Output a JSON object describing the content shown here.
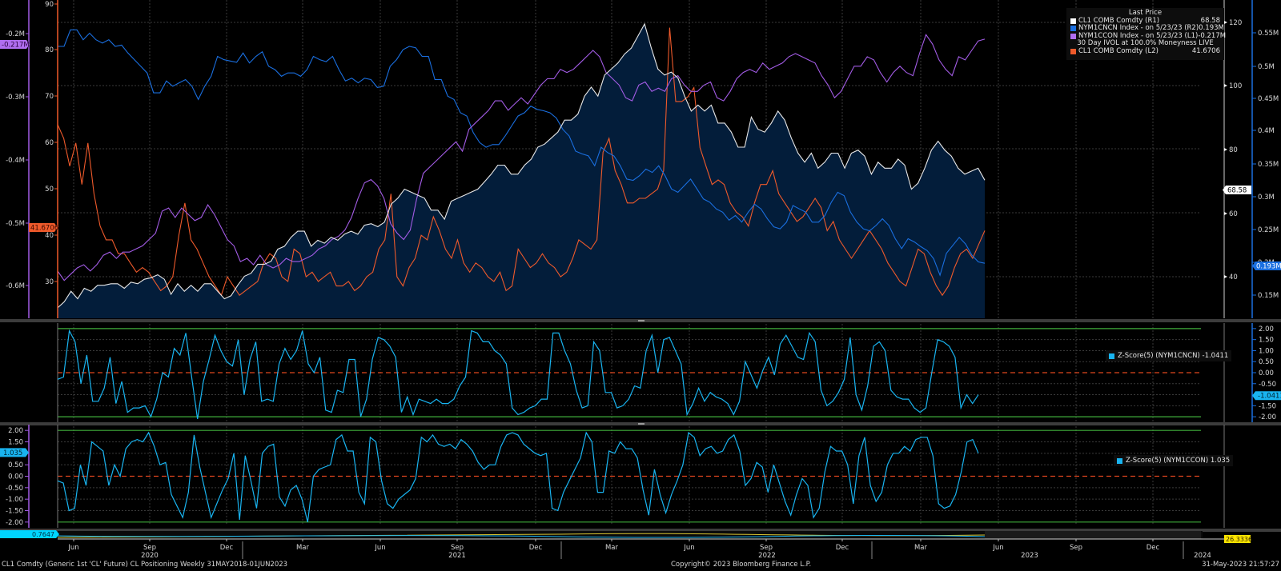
{
  "window": {
    "footer_left": "CL1 Comdty (Generic 1st 'CL' Future) CL Positioning  Weekly 31MAY2018-01JUN2023",
    "footer_center": "Copyright© 2023 Bloomberg Finance L.P.",
    "footer_right": "31-May-2023 21:57:27"
  },
  "colors": {
    "background": "#000000",
    "area_fill": "#031d3a",
    "cl1_price": "#e8e8e8",
    "nym1cncn": "#1a6fe0",
    "nym1ccon": "#a35ce6",
    "ivol": "#ef5a2b",
    "zscore": "#19b4f0",
    "zero_line": "#e0461e",
    "band_line": "#3fae3a",
    "grid": "#3a3a3a"
  },
  "legend": {
    "title": "Last Price",
    "rows": [
      {
        "name": "CL1 COMB Comdty  (R1)",
        "value": "68.58",
        "color": "#ffffff"
      },
      {
        "name": "NYM1CNCN Index -  on 5/23/23  (R2)",
        "value": "0.193M",
        "color": "#1a6fe0"
      },
      {
        "name": "NYM1CCON Index -  on 5/23/23  (L1)",
        "value": "-0.217M",
        "color": "#b06ef0"
      }
    ],
    "subtitle": "30 Day IVOL at 100.0% Moneyness LIVE",
    "rows2": [
      {
        "name": "CL1 COMB Comdty  (L2)",
        "value": "41.6706",
        "color": "#ef5a2b"
      }
    ]
  },
  "axes": {
    "l1_ticks": [
      "-0.2M",
      "-0.3M",
      "-0.4M",
      "-0.5M",
      "-0.6M"
    ],
    "l1_last": "-0.217M",
    "l2_ticks": [
      "90",
      "80",
      "70",
      "60",
      "50",
      "40",
      "30"
    ],
    "l2_last": "41.6706",
    "r1_ticks": [
      "120",
      "100",
      "80",
      "60",
      "40"
    ],
    "r1_last": "68.58",
    "r2_ticks": [
      "0.55M",
      "0.5M",
      "0.45M",
      "0.4M",
      "0.35M",
      "0.3M",
      "0.25M",
      "0.2M",
      "0.15M"
    ],
    "r2_last": "0.193M",
    "z_ticks": [
      "2.00",
      "1.50",
      "1.00",
      "0.50",
      "0.00",
      "-0.50",
      "-1.00",
      "-1.50",
      "-2.00"
    ],
    "z1_last": "-1.0411",
    "z2_last": "1.035",
    "mini_left": "0.7647",
    "mini_right": "26.3336",
    "x_months": [
      "Jun",
      "Sep",
      "Dec",
      "Mar",
      "Jun",
      "Sep",
      "Dec",
      "Mar",
      "Jun",
      "Sep",
      "Dec",
      "Mar",
      "Jun",
      "Sep",
      "Dec"
    ],
    "x_years": [
      "2020",
      "2021",
      "2022",
      "2023",
      "2024"
    ]
  },
  "zpanels": {
    "z1_label": "Z-Score(5) (NYM1CNCN) -1.0411",
    "z2_label": "Z-Score(5) (NYM1CCON) 1.035"
  },
  "chart_data": [
    {
      "type": "line",
      "title": "CL Positioning - Weekly 31MAY2018-01JUN2023",
      "x_range": [
        "2020-05",
        "2023-05"
      ],
      "x_ticks": [
        "Jun 2020",
        "Sep 2020",
        "Dec 2020",
        "Mar 2021",
        "Jun 2021",
        "Sep 2021",
        "Dec 2021",
        "Mar 2022",
        "Jun 2022",
        "Sep 2022",
        "Dec 2022",
        "Mar 2023",
        "Jun 2023",
        "Sep 2023",
        "Dec 2023"
      ],
      "grid": true,
      "legend_position": "top-right",
      "series": [
        {
          "name": "CL1 COMB Comdty (R1)",
          "axis": "R1",
          "style": "area",
          "last": 68.58,
          "ylim": [
            22,
            128
          ],
          "values": [
            25.5,
            27.5,
            31,
            28.5,
            32,
            31,
            33,
            33,
            33.5,
            33.5,
            32,
            34,
            33.5,
            35,
            35.5,
            36.5,
            35,
            30,
            33.5,
            31,
            33,
            31,
            33.5,
            33.5,
            31,
            28.5,
            29.5,
            33,
            36,
            37,
            40,
            40,
            41,
            45,
            46,
            49,
            51,
            51,
            46,
            48,
            47,
            49,
            48,
            50,
            51,
            50,
            53,
            53.5,
            52.5,
            54,
            60,
            62,
            65,
            64,
            63,
            62,
            58,
            58,
            55,
            61,
            62,
            63,
            64,
            65,
            67.5,
            70,
            73,
            73,
            70,
            70,
            73,
            75,
            79,
            80,
            82,
            84,
            88,
            88,
            90,
            96,
            99,
            96,
            103,
            105,
            107,
            110,
            112,
            116,
            120,
            112,
            105,
            103,
            104,
            102,
            96,
            91,
            93,
            91,
            93,
            87,
            87,
            84,
            79,
            79,
            89,
            85,
            84,
            87,
            91,
            88,
            82,
            77,
            74,
            77,
            72,
            74,
            77,
            77,
            72,
            77,
            78,
            76,
            70,
            74,
            72,
            72,
            75,
            73,
            65,
            67,
            72,
            78,
            81,
            78,
            76,
            72,
            70,
            71,
            72,
            68
          ]
        },
        {
          "name": "NYM1CNCN Index (R2)",
          "axis": "R2",
          "style": "line",
          "last": 0.193,
          "ylim": [
            0.11,
            0.59
          ],
          "values": [
            0.52,
            0.52,
            0.545,
            0.545,
            0.53,
            0.54,
            0.53,
            0.525,
            0.53,
            0.52,
            0.522,
            0.51,
            0.5,
            0.49,
            0.48,
            0.45,
            0.45,
            0.468,
            0.46,
            0.465,
            0.47,
            0.46,
            0.44,
            0.46,
            0.475,
            0.505,
            0.5,
            0.498,
            0.496,
            0.51,
            0.495,
            0.505,
            0.512,
            0.49,
            0.485,
            0.475,
            0.48,
            0.48,
            0.475,
            0.485,
            0.505,
            0.5,
            0.497,
            0.505,
            0.485,
            0.468,
            0.472,
            0.465,
            0.472,
            0.47,
            0.458,
            0.46,
            0.49,
            0.5,
            0.515,
            0.52,
            0.518,
            0.505,
            0.505,
            0.47,
            0.47,
            0.445,
            0.44,
            0.42,
            0.415,
            0.39,
            0.375,
            0.368,
            0.372,
            0.372,
            0.385,
            0.4,
            0.415,
            0.42,
            0.43,
            0.425,
            0.423,
            0.42,
            0.412,
            0.395,
            0.385,
            0.362,
            0.358,
            0.355,
            0.34,
            0.368,
            0.36,
            0.355,
            0.34,
            0.32,
            0.318,
            0.325,
            0.335,
            0.33,
            0.34,
            0.325,
            0.305,
            0.3,
            0.31,
            0.32,
            0.305,
            0.29,
            0.285,
            0.275,
            0.27,
            0.258,
            0.265,
            0.255,
            0.27,
            0.282,
            0.275,
            0.26,
            0.248,
            0.245,
            0.255,
            0.28,
            0.275,
            0.27,
            0.255,
            0.255,
            0.265,
            0.285,
            0.3,
            0.295,
            0.27,
            0.255,
            0.245,
            0.242,
            0.25,
            0.26,
            0.25,
            0.23,
            0.215,
            0.23,
            0.225,
            0.218,
            0.212,
            0.2,
            0.175,
            0.208,
            0.22,
            0.232,
            0.222,
            0.205,
            0.195,
            0.193
          ]
        },
        {
          "name": "NYM1CCON Index (L1)",
          "axis": "L1",
          "style": "line",
          "last": -0.217,
          "ylim": [
            -0.66,
            -0.155
          ],
          "values": [
            -0.585,
            -0.6,
            -0.59,
            -0.58,
            -0.575,
            -0.585,
            -0.575,
            -0.56,
            -0.555,
            -0.565,
            -0.555,
            -0.555,
            -0.55,
            -0.545,
            -0.535,
            -0.525,
            -0.49,
            -0.485,
            -0.5,
            -0.485,
            -0.495,
            -0.505,
            -0.5,
            -0.48,
            -0.495,
            -0.515,
            -0.535,
            -0.545,
            -0.57,
            -0.565,
            -0.575,
            -0.56,
            -0.575,
            -0.58,
            -0.575,
            -0.565,
            -0.57,
            -0.57,
            -0.565,
            -0.56,
            -0.55,
            -0.545,
            -0.535,
            -0.53,
            -0.52,
            -0.5,
            -0.47,
            -0.445,
            -0.44,
            -0.45,
            -0.47,
            -0.51,
            -0.525,
            -0.535,
            -0.52,
            -0.47,
            -0.43,
            -0.42,
            -0.41,
            -0.4,
            -0.39,
            -0.38,
            -0.395,
            -0.36,
            -0.35,
            -0.34,
            -0.33,
            -0.315,
            -0.315,
            -0.33,
            -0.32,
            -0.31,
            -0.32,
            -0.305,
            -0.29,
            -0.28,
            -0.28,
            -0.265,
            -0.27,
            -0.265,
            -0.255,
            -0.245,
            -0.235,
            -0.245,
            -0.27,
            -0.28,
            -0.29,
            -0.31,
            -0.315,
            -0.29,
            -0.285,
            -0.3,
            -0.295,
            -0.3,
            -0.28,
            -0.275,
            -0.29,
            -0.3,
            -0.3,
            -0.29,
            -0.285,
            -0.31,
            -0.315,
            -0.3,
            -0.28,
            -0.27,
            -0.265,
            -0.27,
            -0.255,
            -0.265,
            -0.26,
            -0.255,
            -0.245,
            -0.24,
            -0.245,
            -0.25,
            -0.255,
            -0.275,
            -0.29,
            -0.31,
            -0.3,
            -0.28,
            -0.26,
            -0.26,
            -0.245,
            -0.25,
            -0.27,
            -0.285,
            -0.27,
            -0.26,
            -0.27,
            -0.275,
            -0.24,
            -0.21,
            -0.225,
            -0.25,
            -0.265,
            -0.275,
            -0.245,
            -0.25,
            -0.235,
            -0.22,
            -0.217
          ]
        },
        {
          "name": "30 Day IVOL CL1 COMB Comdty (L2)",
          "axis": "L2",
          "style": "line",
          "last": 41.6706,
          "ylim": [
            23,
            92
          ],
          "values": [
            65,
            62,
            56,
            61,
            52,
            61,
            50,
            43,
            40,
            40,
            37,
            37,
            35,
            33,
            34,
            33,
            31,
            29,
            30,
            32,
            41,
            48,
            40,
            38,
            35,
            32,
            30,
            28,
            32,
            30,
            28,
            29,
            30,
            31,
            35,
            37,
            36,
            32,
            31,
            38,
            37,
            32,
            33,
            31,
            32,
            33,
            30,
            30,
            31,
            29,
            30,
            32,
            33,
            38,
            40,
            50,
            32,
            30,
            34,
            36,
            41,
            40,
            45,
            42,
            38,
            36,
            40,
            35,
            33,
            35,
            34,
            32,
            31,
            33,
            29,
            30,
            38,
            36,
            34,
            35,
            37,
            35,
            34,
            32,
            33,
            36,
            40,
            39,
            38,
            40,
            59,
            62,
            55,
            52,
            48,
            48,
            49,
            49,
            50,
            51,
            55,
            86,
            70,
            70,
            71,
            73,
            60,
            56,
            52,
            53,
            52,
            48,
            46,
            45,
            43,
            48,
            52,
            52,
            55,
            50,
            48,
            46,
            44,
            45,
            47,
            49,
            47,
            42,
            44,
            40,
            38,
            36,
            38,
            40,
            42,
            40,
            38,
            35,
            33,
            31,
            30,
            34,
            38,
            37,
            33,
            30,
            28,
            30,
            34,
            37,
            38,
            36,
            39,
            42
          ]
        }
      ]
    },
    {
      "type": "line",
      "title": "Z-Score(5) (NYM1CNCN)",
      "ylim": [
        -2.25,
        2.25
      ],
      "hlines": {
        "upper": 2.0,
        "lower": -2.0,
        "zero": 0.0
      },
      "last": -1.0411,
      "values": [
        -0.3,
        -0.2,
        1.9,
        1.4,
        -0.5,
        0.8,
        -1.3,
        -1.3,
        -0.7,
        0.7,
        -1.4,
        -0.4,
        -1.8,
        -1.6,
        -1.6,
        -1.5,
        -2.0,
        -1.2,
        0.0,
        -0.2,
        1.1,
        0.8,
        1.8,
        -0.2,
        -2.1,
        -0.4,
        0.6,
        1.7,
        1.0,
        0.5,
        0.3,
        1.5,
        -1.0,
        0.6,
        1.4,
        -1.3,
        -1.2,
        -1.3,
        0.4,
        1.1,
        0.6,
        1.0,
        1.9,
        0.4,
        0.0,
        0.7,
        -1.7,
        -1.8,
        -0.8,
        -0.9,
        0.6,
        0.6,
        -2.0,
        -1.2,
        0.6,
        1.6,
        1.5,
        1.2,
        0.7,
        -1.8,
        -1.1,
        -1.9,
        -1.2,
        -1.3,
        -1.4,
        -1.2,
        -1.4,
        -1.4,
        -1.2,
        -0.6,
        -0.2,
        1.9,
        1.8,
        1.4,
        1.4,
        1.0,
        0.8,
        0.4,
        -1.6,
        -1.9,
        -1.8,
        -1.6,
        -1.5,
        -1.2,
        -1.2,
        1.8,
        1.8,
        1.0,
        0.4,
        -0.8,
        -1.6,
        -1.5,
        1.4,
        1.0,
        -0.9,
        -0.9,
        -1.6,
        -1.5,
        -1.2,
        -0.6,
        -0.7,
        1.0,
        1.7,
        0.0,
        1.5,
        1.6,
        1.0,
        0.4,
        -1.9,
        -1.4,
        -0.7,
        -1.3,
        -0.9,
        -1.1,
        -1.2,
        -1.4,
        -1.9,
        -1.3,
        0.5,
        -0.1,
        -0.7,
        0.1,
        0.7,
        -0.1,
        1.3,
        1.7,
        1.2,
        0.7,
        0.6,
        1.8,
        1.4,
        -0.8,
        -1.5,
        -1.3,
        -0.9,
        -0.3,
        1.6,
        -1.0,
        -1.7,
        -0.6,
        1.2,
        1.4,
        1.0,
        -0.8,
        -1.1,
        -1.2,
        -1.2,
        -1.6,
        -1.8,
        -1.6,
        0.0,
        1.5,
        1.4,
        1.2,
        0.7,
        -1.6,
        -1.0,
        -1.4,
        -1.0
      ]
    },
    {
      "type": "line",
      "title": "Z-Score(5) (NYM1CCON)",
      "ylim": [
        -2.25,
        2.25
      ],
      "hlines": {
        "upper": 2.0,
        "lower": -2.0,
        "zero": 0.0
      },
      "last": 1.035,
      "values": [
        -0.2,
        -0.3,
        -1.5,
        -1.4,
        0.5,
        -0.4,
        1.5,
        1.3,
        1.1,
        -0.4,
        0.5,
        0.0,
        1.2,
        1.5,
        1.6,
        1.5,
        1.9,
        1.3,
        0.5,
        0.6,
        -0.8,
        -1.3,
        -1.8,
        -0.7,
        1.8,
        0.4,
        -0.7,
        -1.8,
        -1.2,
        -0.6,
        -0.1,
        1.0,
        -1.9,
        0.9,
        -0.2,
        -1.4,
        1.0,
        1.3,
        1.4,
        -0.9,
        -1.3,
        -0.6,
        -0.4,
        -1.0,
        -2.0,
        0.0,
        0.3,
        0.4,
        0.5,
        1.6,
        1.8,
        1.1,
        1.1,
        -0.7,
        -1.2,
        1.7,
        1.5,
        -0.2,
        -1.2,
        -1.4,
        -1.0,
        -0.8,
        -0.6,
        -0.1,
        1.7,
        1.5,
        1.8,
        1.4,
        1.3,
        1.4,
        1.2,
        1.6,
        1.4,
        1.1,
        0.6,
        0.3,
        0.5,
        0.5,
        1.3,
        1.8,
        1.9,
        1.8,
        1.4,
        1.2,
        1.0,
        0.9,
        1.0,
        -1.4,
        -1.5,
        -0.7,
        -0.2,
        0.3,
        0.8,
        1.9,
        1.5,
        -0.7,
        -0.7,
        1.1,
        1.0,
        1.5,
        1.2,
        1.2,
        0.8,
        -0.6,
        -1.7,
        0.3,
        -0.8,
        -1.6,
        -0.8,
        -0.2,
        0.5,
        1.9,
        1.7,
        0.9,
        1.2,
        1.3,
        1.0,
        1.1,
        1.6,
        1.8,
        1.1,
        -0.4,
        -0.1,
        0.6,
        0.4,
        -0.7,
        0.5,
        -0.3,
        -1.1,
        -1.7,
        -0.8,
        -0.1,
        -0.4,
        -1.8,
        -1.4,
        0.2,
        1.3,
        1.1,
        1.1,
        0.5,
        -1.2,
        0.9,
        1.7,
        -0.4,
        -1.1,
        -0.7,
        0.5,
        1.0,
        1.0,
        1.3,
        1.1,
        1.6,
        1.7,
        1.7,
        0.9,
        -1.2,
        -1.4,
        -1.3,
        -0.8,
        0.2,
        1.5,
        1.6,
        1.0
      ]
    }
  ]
}
